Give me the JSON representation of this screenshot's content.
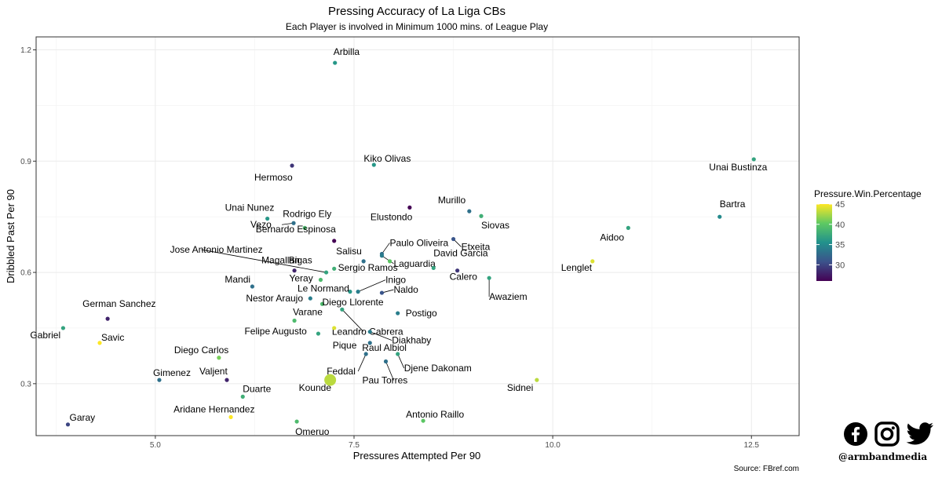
{
  "chart_data": {
    "type": "scatter",
    "title": "Pressing Accuracy of La Liga CBs",
    "subtitle": "Each Player is involved in Minimum 1000 mins. of League Play",
    "xlabel": "Pressures Attempted Per 90",
    "ylabel": "Dribbled Past Per 90",
    "xlim": [
      3.5,
      13.1
    ],
    "ylim": [
      0.16,
      1.235
    ],
    "x_ticks": [
      5.0,
      7.5,
      10.0,
      12.5
    ],
    "x_tick_labels": [
      "5.0",
      "7.5",
      "10.0",
      "12.5"
    ],
    "y_ticks": [
      0.3,
      0.6,
      0.9,
      1.2
    ],
    "y_tick_labels": [
      "0.3",
      "0.6",
      "0.9",
      "1.2"
    ],
    "grid": true,
    "legend": {
      "title": "Pressure.Win.Percentage",
      "position": "right",
      "min": 26,
      "max": 45,
      "ticks": [
        30,
        35,
        40,
        45
      ],
      "tick_labels": [
        "30",
        "35",
        "40",
        "45"
      ]
    },
    "caption": "Source: FBref.com",
    "points": [
      {
        "name": "Arbilla",
        "x": 7.26,
        "y": 1.165,
        "color_value": 36
      },
      {
        "name": "Kiko Olivas",
        "x": 7.75,
        "y": 0.89,
        "color_value": 36
      },
      {
        "name": "Hermoso",
        "x": 6.72,
        "y": 0.888,
        "color_value": 29
      },
      {
        "name": "Unai Bustinza",
        "x": 12.53,
        "y": 0.905,
        "color_value": 37
      },
      {
        "name": "Unai Nunez",
        "x": 6.41,
        "y": 0.745,
        "color_value": 36
      },
      {
        "name": "Rodrigo Ely",
        "x": 6.88,
        "y": 0.72,
        "color_value": 39
      },
      {
        "name": "Vezo",
        "x": 6.74,
        "y": 0.733,
        "color_value": 33
      },
      {
        "name": "Elustondo",
        "x": 8.2,
        "y": 0.775,
        "color_value": 26
      },
      {
        "name": "Murillo",
        "x": 8.95,
        "y": 0.765,
        "color_value": 33
      },
      {
        "name": "Siovas",
        "x": 9.1,
        "y": 0.752,
        "color_value": 38
      },
      {
        "name": "Bartra",
        "x": 12.1,
        "y": 0.75,
        "color_value": 35
      },
      {
        "name": "Aidoo",
        "x": 10.95,
        "y": 0.72,
        "color_value": 37
      },
      {
        "name": "Paulo Oliveira",
        "x": 7.85,
        "y": 0.65,
        "color_value": 33
      },
      {
        "name": "Bernardo Espinosa",
        "x": 7.25,
        "y": 0.685,
        "color_value": 26
      },
      {
        "name": "Etxeita",
        "x": 8.75,
        "y": 0.69,
        "color_value": 31
      },
      {
        "name": "Laguardia",
        "x": 7.85,
        "y": 0.645,
        "color_value": 34
      },
      {
        "name": "Jose Antonio Martinez",
        "x": 7.15,
        "y": 0.6,
        "color_value": 37
      },
      {
        "name": "Salisu",
        "x": 7.62,
        "y": 0.63,
        "color_value": 33
      },
      {
        "name": "Sergio Ramos",
        "x": 7.95,
        "y": 0.63,
        "color_value": 40
      },
      {
        "name": "David Garcia",
        "x": 8.5,
        "y": 0.612,
        "color_value": 37
      },
      {
        "name": "Calero",
        "x": 8.8,
        "y": 0.605,
        "color_value": 29
      },
      {
        "name": "Awaziem",
        "x": 9.2,
        "y": 0.585,
        "color_value": 37
      },
      {
        "name": "Lenglet",
        "x": 10.5,
        "y": 0.63,
        "color_value": 44
      },
      {
        "name": "Magallan",
        "x": 6.75,
        "y": 0.605,
        "color_value": 28
      },
      {
        "name": "Bigas",
        "x": 7.25,
        "y": 0.61,
        "color_value": 38
      },
      {
        "name": "Mandi",
        "x": 6.22,
        "y": 0.562,
        "color_value": 33
      },
      {
        "name": "Yeray",
        "x": 7.08,
        "y": 0.58,
        "color_value": 39
      },
      {
        "name": "Le Normand",
        "x": 7.45,
        "y": 0.548,
        "color_value": 36
      },
      {
        "name": "Inigo",
        "x": 7.55,
        "y": 0.548,
        "color_value": 34
      },
      {
        "name": "Naldo",
        "x": 7.85,
        "y": 0.545,
        "color_value": 31
      },
      {
        "name": "Nestor Araujo",
        "x": 6.95,
        "y": 0.53,
        "color_value": 34
      },
      {
        "name": "Diego Llorente",
        "x": 7.1,
        "y": 0.515,
        "color_value": 39
      },
      {
        "name": "Postigo",
        "x": 8.05,
        "y": 0.49,
        "color_value": 34
      },
      {
        "name": "German Sanchez",
        "x": 4.4,
        "y": 0.475,
        "color_value": 28
      },
      {
        "name": "Varane",
        "x": 6.75,
        "y": 0.47,
        "color_value": 39
      },
      {
        "name": "Leandro Cabrera",
        "x": 7.35,
        "y": 0.5,
        "color_value": 37
      },
      {
        "name": "Gabriel",
        "x": 3.84,
        "y": 0.45,
        "color_value": 37
      },
      {
        "name": "Savic",
        "x": 4.3,
        "y": 0.41,
        "color_value": 45
      },
      {
        "name": "Felipe Augusto",
        "x": 7.05,
        "y": 0.435,
        "color_value": 37
      },
      {
        "name": "Diakhaby",
        "x": 7.7,
        "y": 0.44,
        "color_value": 34
      },
      {
        "name": "Pique",
        "x": 7.25,
        "y": 0.45,
        "color_value": 44
      },
      {
        "name": "Raul Albiol",
        "x": 7.7,
        "y": 0.41,
        "color_value": 33
      },
      {
        "name": "Diego Carlos",
        "x": 5.8,
        "y": 0.37,
        "color_value": 41
      },
      {
        "name": "Feddal",
        "x": 7.65,
        "y": 0.38,
        "color_value": 33
      },
      {
        "name": "Djene Dakonam",
        "x": 8.05,
        "y": 0.38,
        "color_value": 37
      },
      {
        "name": "Pau Torres",
        "x": 7.9,
        "y": 0.36,
        "color_value": 33
      },
      {
        "name": "Gimenez",
        "x": 5.05,
        "y": 0.31,
        "color_value": 33
      },
      {
        "name": "Valjent",
        "x": 5.9,
        "y": 0.31,
        "color_value": 28
      },
      {
        "name": "Kounde",
        "x": 7.2,
        "y": 0.31,
        "color_value": 43,
        "size": "large"
      },
      {
        "name": "Sidnei",
        "x": 9.8,
        "y": 0.31,
        "color_value": 43
      },
      {
        "name": "Duarte",
        "x": 6.1,
        "y": 0.265,
        "color_value": 38
      },
      {
        "name": "Aridane Hernandez",
        "x": 5.95,
        "y": 0.21,
        "color_value": 45
      },
      {
        "name": "Antonio Raillo",
        "x": 8.37,
        "y": 0.2,
        "color_value": 40
      },
      {
        "name": "Garay",
        "x": 3.9,
        "y": 0.19,
        "color_value": 30
      },
      {
        "name": "Omeruo",
        "x": 6.78,
        "y": 0.198,
        "color_value": 39
      }
    ]
  },
  "branding": {
    "handle": "@armbandmedia",
    "icons": [
      "facebook-icon",
      "instagram-icon",
      "twitter-icon"
    ]
  }
}
